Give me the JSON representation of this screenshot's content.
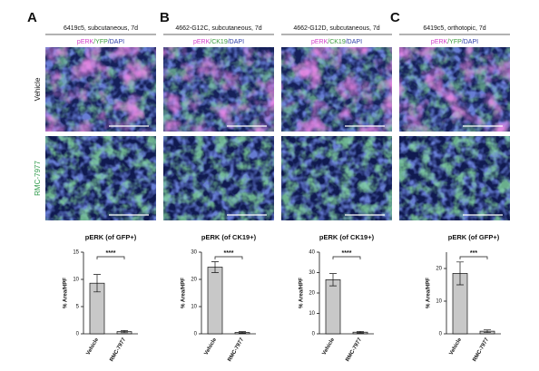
{
  "columns": [
    {
      "letter": "A",
      "header": "6419c5, subcutaneous, 7d",
      "stain": [
        {
          "text": "pERK",
          "color": "#d23fc9"
        },
        {
          "text": "/YFP",
          "color": "#3a9a3a"
        },
        {
          "text": "/DAPI",
          "color": "#2f3fa8"
        }
      ]
    },
    {
      "letter": "B",
      "header": "4662-G12C, subcutaneous, 7d",
      "stain": [
        {
          "text": "pERK",
          "color": "#d23fc9"
        },
        {
          "text": "/CK19",
          "color": "#3a9a3a"
        },
        {
          "text": "/DAPI",
          "color": "#2f3fa8"
        }
      ]
    },
    {
      "header": "4662-G12D, subcutaneous, 7d",
      "stain": [
        {
          "text": "pERK",
          "color": "#d23fc9"
        },
        {
          "text": "/CK19",
          "color": "#3a9a3a"
        },
        {
          "text": "/DAPI",
          "color": "#2f3fa8"
        }
      ]
    },
    {
      "letter": "C",
      "header": "6419c5, orthotopic, 7d",
      "stain": [
        {
          "text": "pERK",
          "color": "#d23fc9"
        },
        {
          "text": "/YFP",
          "color": "#3a9a3a"
        },
        {
          "text": "/DAPI",
          "color": "#2f3fa8"
        }
      ]
    }
  ],
  "row_labels": [
    {
      "text": "Vehicle",
      "color": "#111111"
    },
    {
      "text": "RMC-7977",
      "color": "#2e9a4a"
    }
  ],
  "charts": [
    {
      "type": "bar",
      "title": "pERK (of GFP+)",
      "y_label": "% Area/HPF",
      "categories": [
        "Vehicle",
        "RMC-7977"
      ],
      "values": [
        9.3,
        0.4
      ],
      "errors": [
        1.6,
        0.2
      ],
      "ylim": [
        0,
        15
      ],
      "yticks": [
        0,
        5,
        10,
        15
      ],
      "significance": "****",
      "color": "#c8c8c8"
    },
    {
      "type": "bar",
      "title": "pERK (of CK19+)",
      "y_label": "% Area/HPF",
      "categories": [
        "Vehicle",
        "RMC-7977"
      ],
      "values": [
        24.5,
        0.5
      ],
      "errors": [
        2.0,
        0.3
      ],
      "ylim": [
        0,
        30
      ],
      "yticks": [
        0,
        10,
        20,
        30
      ],
      "significance": "****",
      "color": "#c8c8c8"
    },
    {
      "type": "bar",
      "title": "pERK (of CK19+)",
      "y_label": "% Area/HPF",
      "categories": [
        "Vehicle",
        "RMC-7977"
      ],
      "values": [
        26.5,
        0.8
      ],
      "errors": [
        3.0,
        0.4
      ],
      "ylim": [
        0,
        40
      ],
      "yticks": [
        0,
        10,
        20,
        30,
        40
      ],
      "significance": "****",
      "color": "#c8c8c8"
    },
    {
      "type": "bar",
      "title": "pERK (of GFP+)",
      "y_label": "% Area/HPF",
      "categories": [
        "Vehicle",
        "RMC-7977"
      ],
      "values": [
        18.5,
        0.8
      ],
      "errors": [
        3.5,
        0.4
      ],
      "ylim": [
        0,
        25
      ],
      "yticks": [
        0,
        10,
        20
      ],
      "significance": "***",
      "color": "#c8c8c8"
    }
  ]
}
